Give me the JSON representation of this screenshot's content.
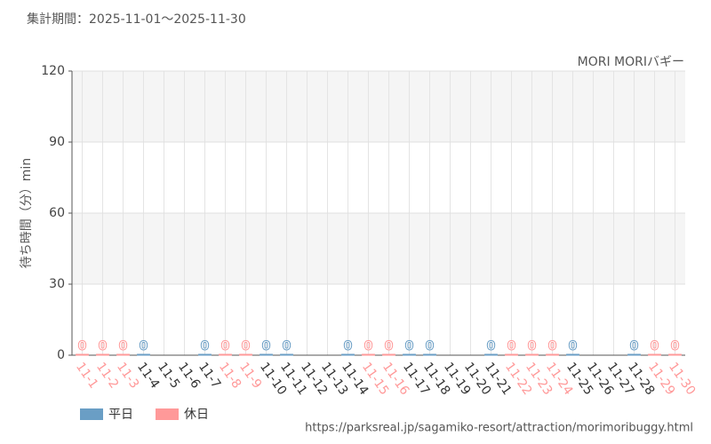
{
  "chart_data": {
    "type": "bar",
    "title": "集計期間：2025-11-01〜2025-11-30",
    "subtitle": "MORI MORIバギー",
    "y_label": "待ち時間（分）min",
    "source": "https://parksreal.jp/sagamiko-resort/attraction/morimoribuggy.html",
    "categories": [
      "11-1",
      "11-2",
      "11-3",
      "11-4",
      "11-5",
      "11-6",
      "11-7",
      "11-8",
      "11-9",
      "11-10",
      "11-11",
      "11-12",
      "11-13",
      "11-14",
      "11-15",
      "11-16",
      "11-17",
      "11-18",
      "11-19",
      "11-20",
      "11-21",
      "11-22",
      "11-23",
      "11-24",
      "11-25",
      "11-26",
      "11-27",
      "11-28",
      "11-29",
      "11-30"
    ],
    "category_colors": [
      "#ff9999",
      "#ff9999",
      "#ff9999",
      "#333333",
      "#333333",
      "#333333",
      "#333333",
      "#ff9999",
      "#ff9999",
      "#333333",
      "#333333",
      "#333333",
      "#333333",
      "#333333",
      "#ff9999",
      "#ff9999",
      "#333333",
      "#333333",
      "#333333",
      "#333333",
      "#333333",
      "#ff9999",
      "#ff9999",
      "#ff9999",
      "#333333",
      "#333333",
      "#333333",
      "#333333",
      "#ff9999",
      "#ff9999"
    ],
    "series": [
      {
        "name": "平日",
        "color": "#6a9ec5",
        "values": [
          null,
          null,
          null,
          0,
          null,
          null,
          0,
          null,
          null,
          0,
          0,
          null,
          null,
          0,
          null,
          null,
          0,
          0,
          null,
          null,
          0,
          null,
          null,
          null,
          0,
          null,
          null,
          0,
          null,
          null
        ]
      },
      {
        "name": "休日",
        "color": "#ff9999",
        "values": [
          0,
          0,
          0,
          null,
          null,
          null,
          null,
          0,
          0,
          null,
          null,
          null,
          null,
          null,
          0,
          0,
          null,
          null,
          null,
          null,
          null,
          0,
          0,
          0,
          null,
          null,
          null,
          null,
          0,
          0
        ]
      }
    ],
    "ylim": [
      0,
      120
    ],
    "yticks": [
      0,
      30,
      60,
      90,
      120
    ],
    "grid": true
  }
}
